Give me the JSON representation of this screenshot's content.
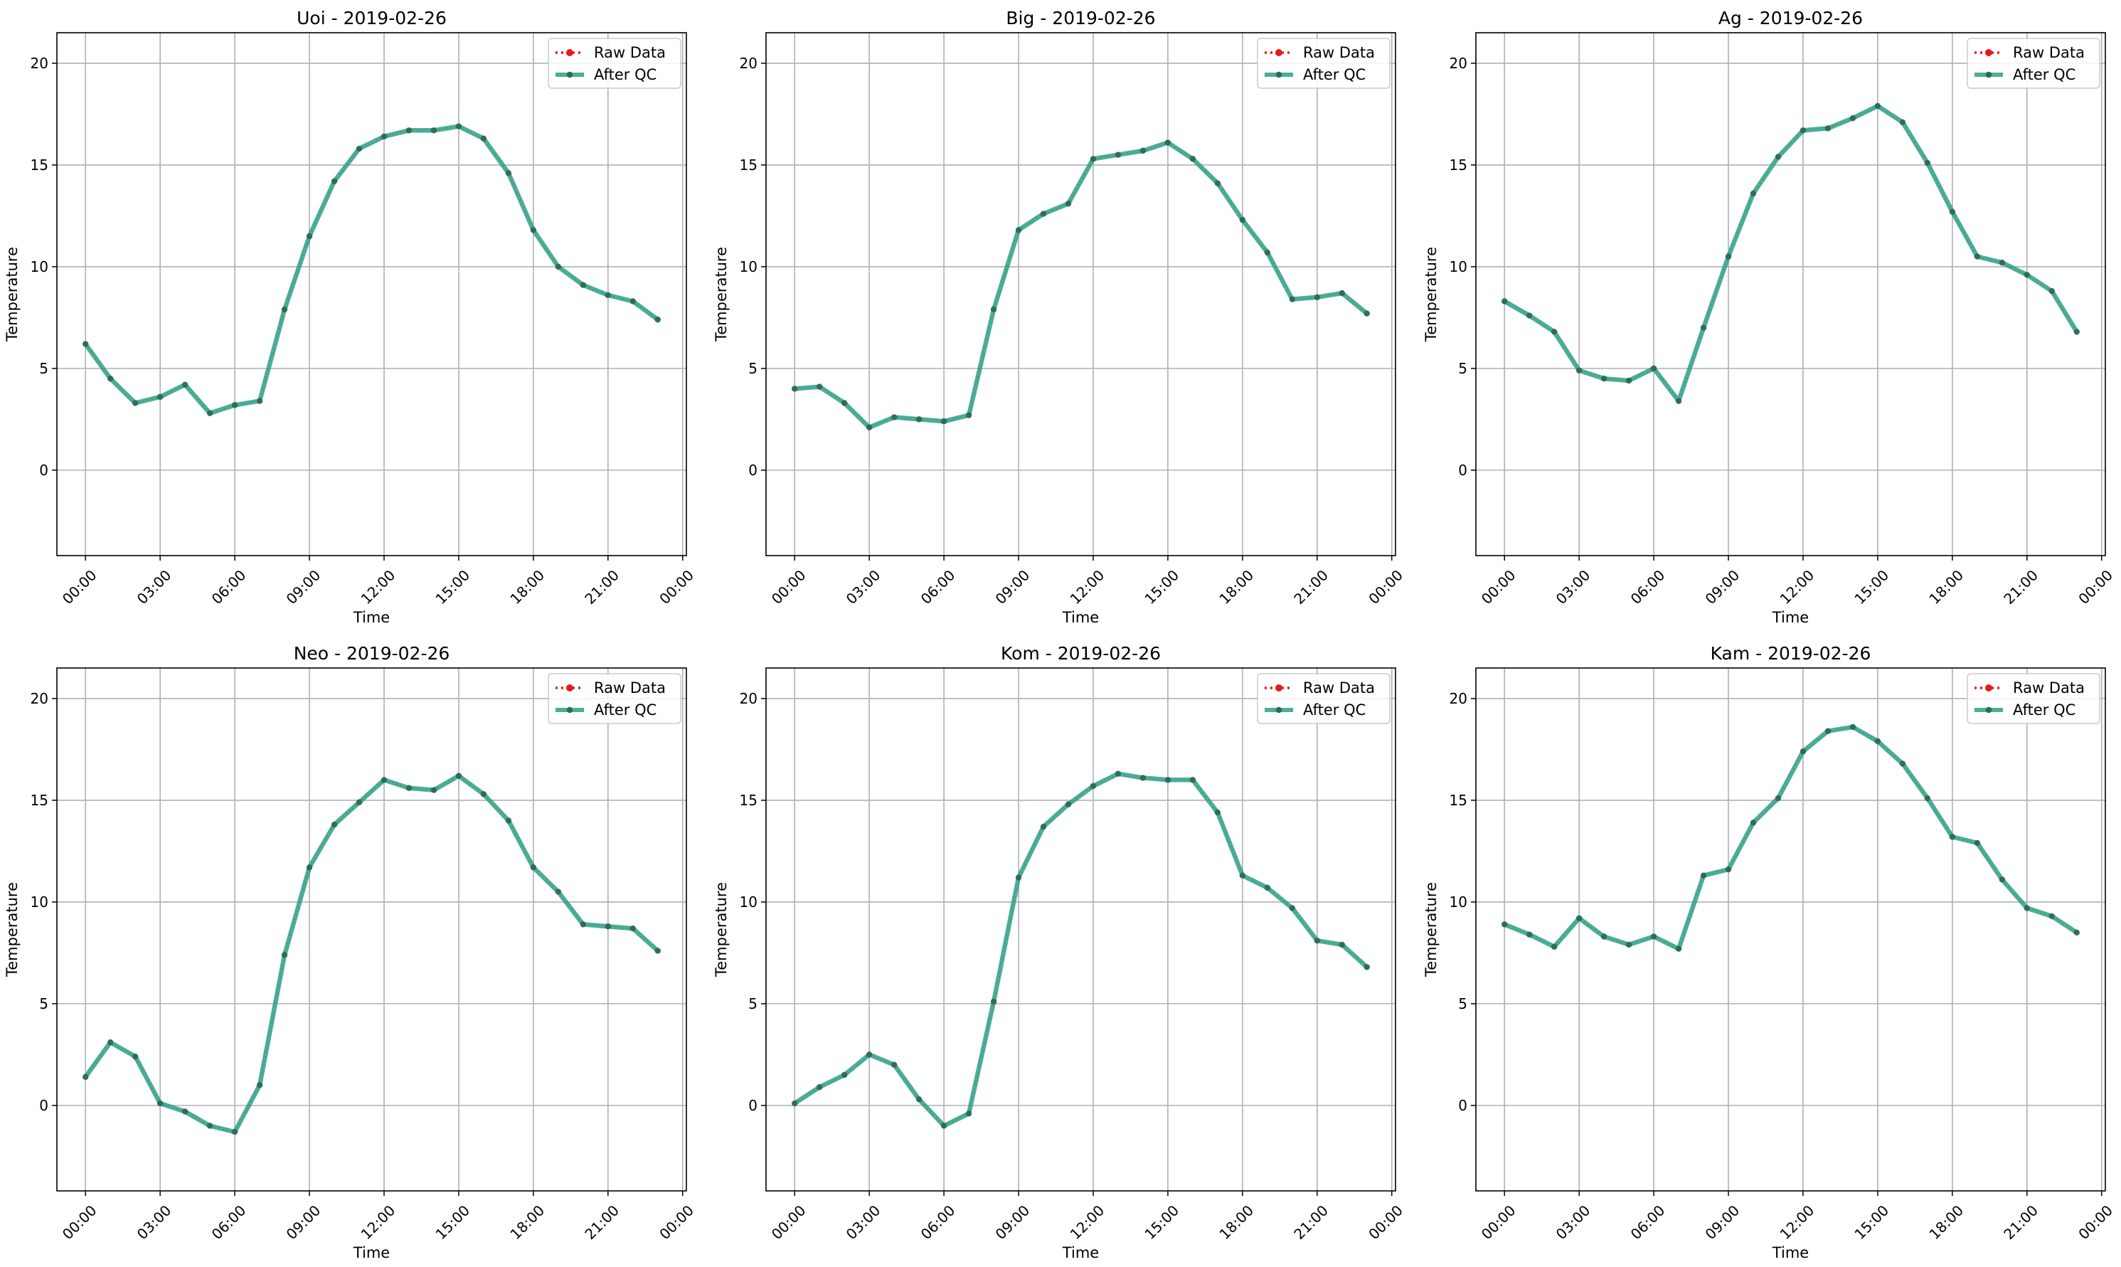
{
  "chart_data": [
    {
      "type": "line",
      "title": "Uoi - 2019-02-26",
      "xlabel": "Time",
      "ylabel": "Temperature",
      "xticks": [
        "00:00",
        "03:00",
        "06:00",
        "09:00",
        "12:00",
        "15:00",
        "18:00",
        "21:00",
        "00:00"
      ],
      "yticks": [
        0,
        5,
        10,
        15,
        20
      ],
      "xlim": [
        -1.15,
        24.15
      ],
      "ylim": [
        -4.2,
        21.5
      ],
      "grid": true,
      "legend_position": "top-right",
      "x": [
        0,
        1,
        2,
        3,
        4,
        5,
        6,
        7,
        8,
        9,
        10,
        11,
        12,
        13,
        14,
        15,
        16,
        17,
        18,
        19,
        20,
        21,
        22,
        23
      ],
      "series": [
        {
          "name": "Raw Data",
          "color": "#e41a1c",
          "style": "dotted",
          "values": [
            6.2,
            4.5,
            3.3,
            3.6,
            4.2,
            2.8,
            3.2,
            3.4,
            7.9,
            11.5,
            14.2,
            15.8,
            16.4,
            16.7,
            16.7,
            16.9,
            16.3,
            14.6,
            11.8,
            10.0,
            9.1,
            8.6,
            8.3,
            7.4
          ]
        },
        {
          "name": "After QC",
          "color": "#2ca087",
          "style": "solid",
          "values": [
            6.2,
            4.5,
            3.3,
            3.6,
            4.2,
            2.8,
            3.2,
            3.4,
            7.9,
            11.5,
            14.2,
            15.8,
            16.4,
            16.7,
            16.7,
            16.9,
            16.3,
            14.6,
            11.8,
            10.0,
            9.1,
            8.6,
            8.3,
            7.4
          ]
        }
      ]
    },
    {
      "type": "line",
      "title": "Big - 2019-02-26",
      "xlabel": "Time",
      "ylabel": "Temperature",
      "xticks": [
        "00:00",
        "03:00",
        "06:00",
        "09:00",
        "12:00",
        "15:00",
        "18:00",
        "21:00",
        "00:00"
      ],
      "yticks": [
        0,
        5,
        10,
        15,
        20
      ],
      "xlim": [
        -1.15,
        24.15
      ],
      "ylim": [
        -4.2,
        21.5
      ],
      "grid": true,
      "legend_position": "top-right",
      "x": [
        0,
        1,
        2,
        3,
        4,
        5,
        6,
        7,
        8,
        9,
        10,
        11,
        12,
        13,
        14,
        15,
        16,
        17,
        18,
        19,
        20,
        21,
        22,
        23
      ],
      "series": [
        {
          "name": "Raw Data",
          "color": "#e41a1c",
          "style": "dotted",
          "values": [
            4.0,
            4.1,
            3.3,
            2.1,
            2.6,
            2.5,
            2.4,
            2.7,
            7.9,
            11.8,
            12.6,
            13.1,
            15.3,
            15.5,
            15.7,
            16.1,
            15.3,
            14.1,
            12.3,
            10.7,
            8.4,
            8.5,
            8.7,
            7.7
          ]
        },
        {
          "name": "After QC",
          "color": "#2ca087",
          "style": "solid",
          "values": [
            4.0,
            4.1,
            3.3,
            2.1,
            2.6,
            2.5,
            2.4,
            2.7,
            7.9,
            11.8,
            12.6,
            13.1,
            15.3,
            15.5,
            15.7,
            16.1,
            15.3,
            14.1,
            12.3,
            10.7,
            8.4,
            8.5,
            8.7,
            7.7
          ]
        }
      ]
    },
    {
      "type": "line",
      "title": "Ag - 2019-02-26",
      "xlabel": "Time",
      "ylabel": "Temperature",
      "xticks": [
        "00:00",
        "03:00",
        "06:00",
        "09:00",
        "12:00",
        "15:00",
        "18:00",
        "21:00",
        "00:00"
      ],
      "yticks": [
        0,
        5,
        10,
        15,
        20
      ],
      "xlim": [
        -1.15,
        24.15
      ],
      "ylim": [
        -4.2,
        21.5
      ],
      "grid": true,
      "legend_position": "top-right",
      "x": [
        0,
        1,
        2,
        3,
        4,
        5,
        6,
        7,
        8,
        9,
        10,
        11,
        12,
        13,
        14,
        15,
        16,
        17,
        18,
        19,
        20,
        21,
        22,
        23
      ],
      "series": [
        {
          "name": "Raw Data",
          "color": "#e41a1c",
          "style": "dotted",
          "values": [
            8.3,
            7.6,
            6.8,
            4.9,
            4.5,
            4.4,
            5.0,
            3.4,
            7.0,
            10.5,
            13.6,
            15.4,
            16.7,
            16.8,
            17.3,
            17.9,
            17.1,
            15.1,
            12.7,
            10.5,
            10.2,
            9.6,
            8.8,
            6.8
          ]
        },
        {
          "name": "After QC",
          "color": "#2ca087",
          "style": "solid",
          "values": [
            8.3,
            7.6,
            6.8,
            4.9,
            4.5,
            4.4,
            5.0,
            3.4,
            7.0,
            10.5,
            13.6,
            15.4,
            16.7,
            16.8,
            17.3,
            17.9,
            17.1,
            15.1,
            12.7,
            10.5,
            10.2,
            9.6,
            8.8,
            6.8
          ]
        }
      ]
    },
    {
      "type": "line",
      "title": "Neo - 2019-02-26",
      "xlabel": "Time",
      "ylabel": "Temperature",
      "xticks": [
        "00:00",
        "03:00",
        "06:00",
        "09:00",
        "12:00",
        "15:00",
        "18:00",
        "21:00",
        "00:00"
      ],
      "yticks": [
        0,
        5,
        10,
        15,
        20
      ],
      "xlim": [
        -1.15,
        24.15
      ],
      "ylim": [
        -4.2,
        21.5
      ],
      "grid": true,
      "legend_position": "top-right",
      "x": [
        0,
        1,
        2,
        3,
        4,
        5,
        6,
        7,
        8,
        9,
        10,
        11,
        12,
        13,
        14,
        15,
        16,
        17,
        18,
        19,
        20,
        21,
        22,
        23
      ],
      "series": [
        {
          "name": "Raw Data",
          "color": "#e41a1c",
          "style": "dotted",
          "values": [
            1.4,
            3.1,
            2.4,
            0.1,
            -0.3,
            -1.0,
            -1.3,
            1.0,
            7.4,
            11.7,
            13.8,
            14.9,
            16.0,
            15.6,
            15.5,
            16.2,
            15.3,
            14.0,
            11.7,
            10.5,
            8.9,
            8.8,
            8.7,
            7.6
          ]
        },
        {
          "name": "After QC",
          "color": "#2ca087",
          "style": "solid",
          "values": [
            1.4,
            3.1,
            2.4,
            0.1,
            -0.3,
            -1.0,
            -1.3,
            1.0,
            7.4,
            11.7,
            13.8,
            14.9,
            16.0,
            15.6,
            15.5,
            16.2,
            15.3,
            14.0,
            11.7,
            10.5,
            8.9,
            8.8,
            8.7,
            7.6
          ]
        }
      ]
    },
    {
      "type": "line",
      "title": "Kom - 2019-02-26",
      "xlabel": "Time",
      "ylabel": "Temperature",
      "xticks": [
        "00:00",
        "03:00",
        "06:00",
        "09:00",
        "12:00",
        "15:00",
        "18:00",
        "21:00",
        "00:00"
      ],
      "yticks": [
        0,
        5,
        10,
        15,
        20
      ],
      "xlim": [
        -1.15,
        24.15
      ],
      "ylim": [
        -4.2,
        21.5
      ],
      "grid": true,
      "legend_position": "top-right",
      "x": [
        0,
        1,
        2,
        3,
        4,
        5,
        6,
        7,
        8,
        9,
        10,
        11,
        12,
        13,
        14,
        15,
        16,
        17,
        18,
        19,
        20,
        21,
        22,
        23
      ],
      "series": [
        {
          "name": "Raw Data",
          "color": "#e41a1c",
          "style": "dotted",
          "values": [
            0.1,
            0.9,
            1.5,
            2.5,
            2.0,
            0.3,
            -1.0,
            -0.4,
            5.1,
            11.2,
            13.7,
            14.8,
            15.7,
            16.3,
            16.1,
            16.0,
            16.0,
            14.4,
            11.3,
            10.7,
            9.7,
            8.1,
            7.9,
            6.8
          ]
        },
        {
          "name": "After QC",
          "color": "#2ca087",
          "style": "solid",
          "values": [
            0.1,
            0.9,
            1.5,
            2.5,
            2.0,
            0.3,
            -1.0,
            -0.4,
            5.1,
            11.2,
            13.7,
            14.8,
            15.7,
            16.3,
            16.1,
            16.0,
            16.0,
            14.4,
            11.3,
            10.7,
            9.7,
            8.1,
            7.9,
            6.8
          ]
        }
      ]
    },
    {
      "type": "line",
      "title": "Kam - 2019-02-26",
      "xlabel": "Time",
      "ylabel": "Temperature",
      "xticks": [
        "00:00",
        "03:00",
        "06:00",
        "09:00",
        "12:00",
        "15:00",
        "18:00",
        "21:00",
        "00:00"
      ],
      "yticks": [
        0,
        5,
        10,
        15,
        20
      ],
      "xlim": [
        -1.15,
        24.15
      ],
      "ylim": [
        -4.2,
        21.5
      ],
      "grid": true,
      "legend_position": "top-right",
      "x": [
        0,
        1,
        2,
        3,
        4,
        5,
        6,
        7,
        8,
        9,
        10,
        11,
        12,
        13,
        14,
        15,
        16,
        17,
        18,
        19,
        20,
        21,
        22,
        23
      ],
      "series": [
        {
          "name": "Raw Data",
          "color": "#e41a1c",
          "style": "dotted",
          "values": [
            8.9,
            8.4,
            7.8,
            9.2,
            8.3,
            7.9,
            8.3,
            7.7,
            11.3,
            11.6,
            13.9,
            15.1,
            17.4,
            18.4,
            18.6,
            17.9,
            16.8,
            15.1,
            13.2,
            12.9,
            11.1,
            9.7,
            9.3,
            8.5
          ]
        },
        {
          "name": "After QC",
          "color": "#2ca087",
          "style": "solid",
          "values": [
            8.9,
            8.4,
            7.8,
            9.2,
            8.3,
            7.9,
            8.3,
            7.7,
            11.3,
            11.6,
            13.9,
            15.1,
            17.4,
            18.4,
            18.6,
            17.9,
            16.8,
            15.1,
            13.2,
            12.9,
            11.1,
            9.7,
            9.3,
            8.5
          ]
        }
      ]
    }
  ]
}
